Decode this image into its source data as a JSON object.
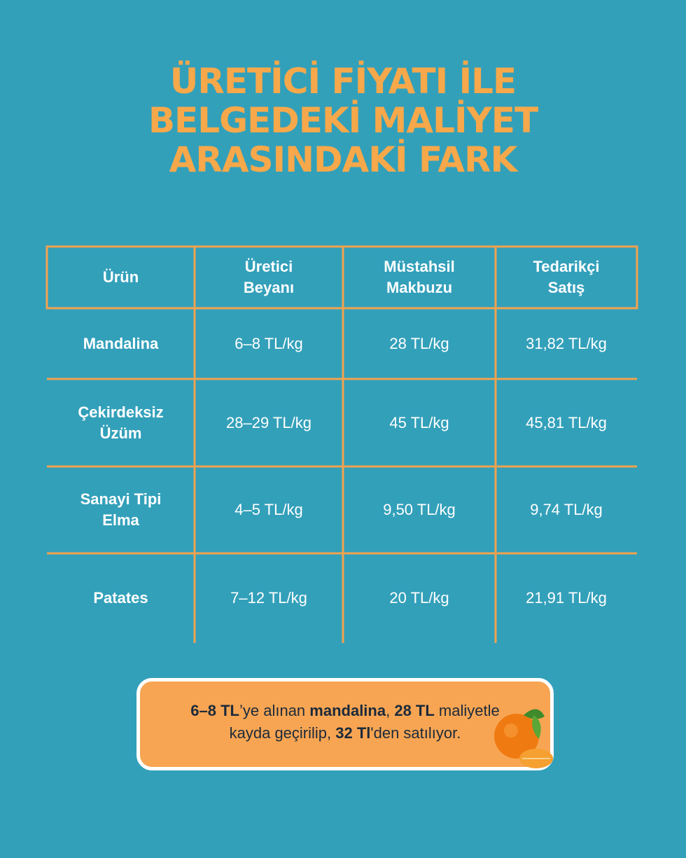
{
  "title": [
    "ÜRETİCİ FİYATI İLE",
    "BELGEDEKİ MALİYET",
    "ARASINDAKİ FARK"
  ],
  "table": {
    "headers": [
      "Ürün",
      "Üretici Beyanı",
      "Müstahsil Makbuzu",
      "Tedarikçi Satış"
    ],
    "rows": [
      [
        "Mandalina",
        "6–8 TL/kg",
        "28 TL/kg",
        "31,82 TL/kg"
      ],
      [
        "Çekirdeksiz Üzüm",
        "28–29 TL/kg",
        "45 TL/kg",
        "45,81 TL/kg"
      ],
      [
        "Sanayi Tipi Elma",
        "4–5 TL/kg",
        "9,50 TL/kg",
        "9,74 TL/kg"
      ],
      [
        "Patates",
        "7–12 TL/kg",
        "20 TL/kg",
        "21,91 TL/kg"
      ]
    ]
  },
  "callout": {
    "lines": [
      [
        {
          "text": "6–8 TL",
          "bold": true
        },
        {
          "text": "’ye alınan "
        },
        {
          "text": "mandalina",
          "bold": true
        },
        {
          "text": ", "
        },
        {
          "text": "28 TL",
          "bold": true
        },
        {
          "text": " maliyetle"
        }
      ],
      [
        {
          "text": "kayda geçirilip, "
        },
        {
          "text": "32 Tl",
          "bold": true
        },
        {
          "text": "'den satılıyor."
        }
      ]
    ]
  }
}
